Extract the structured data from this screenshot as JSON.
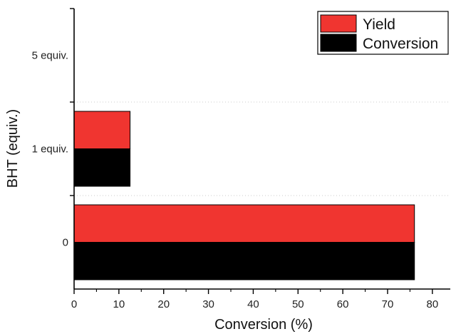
{
  "chart_data": {
    "type": "bar",
    "orientation": "horizontal",
    "categories": [
      "0",
      "1 equiv.",
      "5 equiv."
    ],
    "series": [
      {
        "name": "Yield",
        "color": "#f03530",
        "values": [
          76,
          12.5,
          0
        ]
      },
      {
        "name": "Conversion",
        "color": "#000000",
        "values": [
          76,
          12.5,
          0
        ]
      }
    ],
    "xlabel": "Conversion (%)",
    "ylabel": "BHT (equiv.)",
    "xlim": [
      0,
      84
    ],
    "xticks": [
      0,
      10,
      20,
      30,
      40,
      50,
      60,
      70,
      80
    ],
    "xtick_labels": [
      "0",
      "10",
      "20",
      "30",
      "40",
      "50",
      "60",
      "70",
      "80"
    ],
    "grid": "dotted separators between categories",
    "legend_position": "top-right"
  }
}
